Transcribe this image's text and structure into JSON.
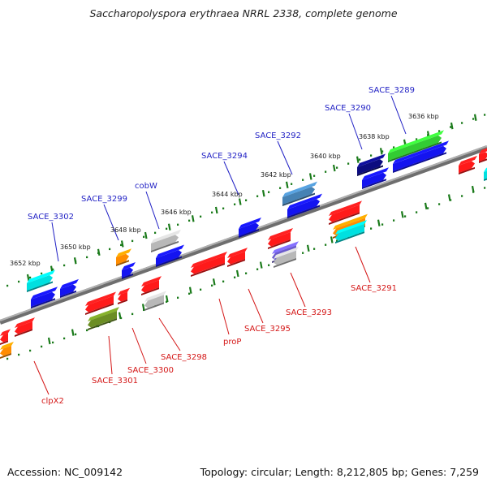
{
  "title": "Saccharopolyspora erythraea NRRL 2338, complete genome",
  "footer": {
    "accession": "Accession: NC_009142",
    "summary": "Topology: circular; Length: 8,212,805 bp; Genes: 7,259"
  },
  "ruler_labels": [
    "3636 kbp",
    "3638 kbp",
    "3640 kbp",
    "3642 kbp",
    "3644 kbp",
    "3646 kbp",
    "3648 kbp",
    "3650 kbp",
    "3652 kbp"
  ],
  "forward_gene_labels": [
    "SACE_3289",
    "SACE_3290",
    "SACE_3292",
    "SACE_3294",
    "cobW",
    "SACE_3299",
    "SACE_3302"
  ],
  "reverse_gene_labels": [
    "SACE_3291",
    "SACE_3293",
    "SACE_3295",
    "proP",
    "SACE_3298",
    "SACE_3300",
    "SACE_3301",
    "clpX2"
  ],
  "colors": {
    "backbone": "#8a8a8a",
    "tick_green": "#1a7a1a",
    "label_blue": "#1f1fc4",
    "label_red": "#d41616",
    "gene_red": "#ff1a1a",
    "gene_blue": "#1414f0",
    "gene_navy": "#0c0c80",
    "gene_steel": "#4682b4",
    "gene_green": "#33cc33",
    "gene_olive": "#6b8e23",
    "gene_orange": "#ff8c00",
    "gene_cyan": "#00e0e0",
    "gene_gray": "#b8b8b8",
    "gene_purple": "#6a5acd"
  }
}
